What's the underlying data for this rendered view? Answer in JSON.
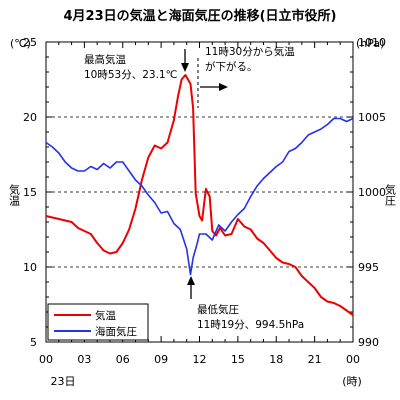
{
  "chart_data": {
    "type": "line",
    "title": "4月23日の気温と海面気圧の推移(日立市役所)",
    "y_left_label": "気温",
    "y_left_unit": "(℃)",
    "y_right_label": "気圧",
    "y_right_unit": "(hPa)",
    "x_date_label": "23日",
    "x_unit": "(時)",
    "x_range": [
      0,
      24
    ],
    "y_left_range": [
      5,
      25
    ],
    "y_right_range": [
      990,
      1010
    ],
    "x_ticks": [
      "00",
      "03",
      "06",
      "09",
      "12",
      "15",
      "18",
      "21",
      "00"
    ],
    "y_left_ticks": [
      "5",
      "10",
      "15",
      "20",
      "25"
    ],
    "y_right_ticks": [
      "990",
      "995",
      "1000",
      "1005",
      "1010"
    ],
    "grid": "horizontal dashed lines at 10, 15, 20 ℃",
    "legend_position": "bottom-left",
    "series": [
      {
        "name": "気温",
        "color": "#ee0000",
        "x": [
          0,
          0.5,
          1,
          1.5,
          2,
          2.5,
          3,
          3.5,
          4,
          4.5,
          5,
          5.5,
          6,
          6.5,
          7,
          7.5,
          8,
          8.5,
          9,
          9.5,
          10,
          10.3,
          10.6,
          10.9,
          11.1,
          11.3,
          11.5,
          11.7,
          12,
          12.2,
          12.5,
          12.8,
          13,
          13.3,
          13.6,
          14,
          14.5,
          15,
          15.5,
          16,
          16.5,
          17,
          17.5,
          18,
          18.5,
          19,
          19.5,
          20,
          20.5,
          21,
          21.5,
          22,
          22.5,
          23,
          23.5,
          24
        ],
        "y": [
          13.4,
          13.3,
          13.2,
          13.1,
          13.0,
          12.6,
          12.4,
          12.2,
          11.6,
          11.1,
          10.9,
          11.0,
          11.6,
          12.5,
          13.9,
          15.8,
          17.3,
          18.1,
          17.9,
          18.3,
          19.8,
          21.3,
          22.5,
          22.8,
          22.5,
          22.2,
          20.6,
          14.9,
          13.4,
          13.1,
          15.2,
          14.7,
          12.4,
          12.1,
          12.6,
          12.1,
          12.2,
          13.2,
          12.7,
          12.5,
          11.9,
          11.6,
          11.1,
          10.6,
          10.3,
          10.2,
          10.0,
          9.4,
          9.0,
          8.6,
          8.0,
          7.7,
          7.6,
          7.4,
          7.1,
          6.8
        ]
      },
      {
        "name": "海面気圧",
        "color": "#2233ee",
        "x": [
          0,
          0.5,
          1,
          1.5,
          2,
          2.5,
          3,
          3.5,
          4,
          4.5,
          5,
          5.5,
          6,
          6.5,
          7,
          7.5,
          8,
          8.5,
          9,
          9.5,
          10,
          10.5,
          11,
          11.3,
          11.5,
          11.8,
          12,
          12.5,
          13,
          13.5,
          14,
          14.5,
          15,
          15.5,
          16,
          16.5,
          17,
          17.5,
          18,
          18.5,
          19,
          19.5,
          20,
          20.5,
          21,
          21.5,
          22,
          22.5,
          23,
          23.5,
          24
        ],
        "y": [
          1003.3,
          1003.0,
          1002.6,
          1002.0,
          1001.6,
          1001.4,
          1001.4,
          1001.7,
          1001.5,
          1001.9,
          1001.6,
          1002.0,
          1002.0,
          1001.4,
          1000.8,
          1000.4,
          999.8,
          999.3,
          998.6,
          998.7,
          997.9,
          997.5,
          996.2,
          994.5,
          995.6,
          996.5,
          997.2,
          997.2,
          996.8,
          997.8,
          997.4,
          998.0,
          998.5,
          998.9,
          999.7,
          1000.4,
          1000.9,
          1001.3,
          1001.7,
          1002.0,
          1002.7,
          1002.9,
          1003.3,
          1003.8,
          1004.0,
          1004.2,
          1004.5,
          1004.9,
          1004.9,
          1004.7,
          1004.9
        ]
      }
    ],
    "annotations": {
      "max_title": "最高気温",
      "max_detail": "10時53分、23.1℃",
      "drop_line1": "11時30分から気温",
      "drop_line2": "が下がる。",
      "min_title": "最低気圧",
      "min_detail": "11時19分、994.5hPa"
    }
  }
}
